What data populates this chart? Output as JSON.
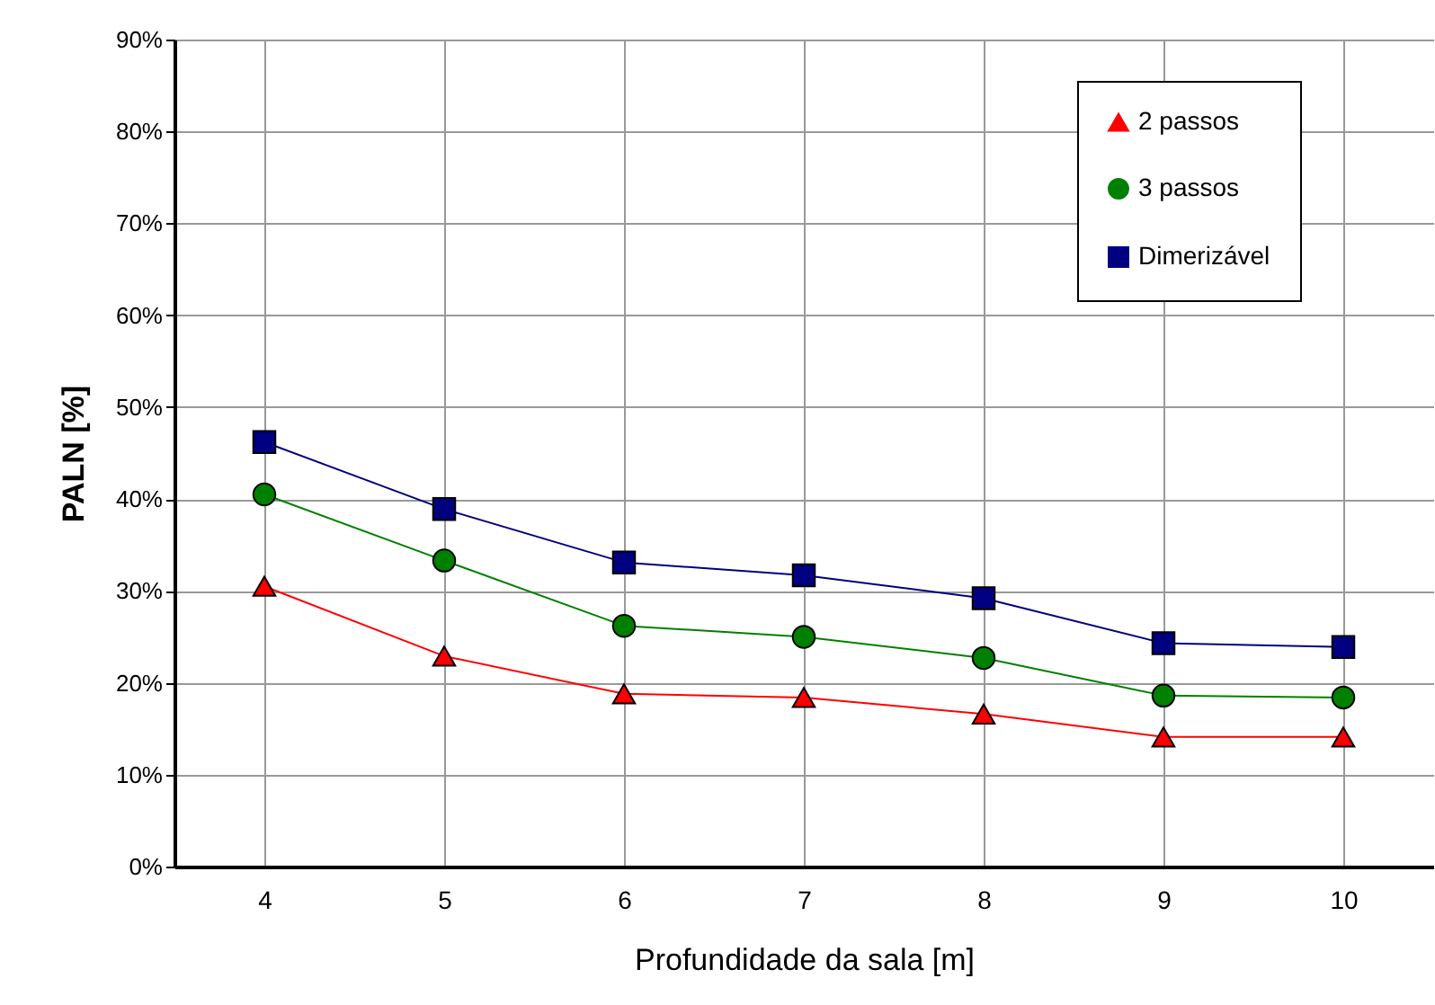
{
  "chart_data": {
    "type": "line",
    "xlabel": "Profundidade da sala [m]",
    "ylabel": "PALN [%]",
    "x": [
      4,
      5,
      6,
      7,
      8,
      9,
      10
    ],
    "xlim": [
      3.5,
      10.5
    ],
    "xticks": [
      4,
      5,
      6,
      7,
      8,
      9,
      10
    ],
    "ylim": [
      0,
      90
    ],
    "yticks": [
      {
        "value": 0,
        "label": "0%"
      },
      {
        "value": 10,
        "label": "10%"
      },
      {
        "value": 20,
        "label": "20%"
      },
      {
        "value": 30,
        "label": "30%"
      },
      {
        "value": 40,
        "label": "40%"
      },
      {
        "value": 50,
        "label": "50%"
      },
      {
        "value": 60,
        "label": "60%"
      },
      {
        "value": 70,
        "label": "70%"
      },
      {
        "value": 80,
        "label": "80%"
      },
      {
        "value": 90,
        "label": "90%"
      }
    ],
    "grid": true,
    "legend": "top right",
    "series": [
      {
        "name": "2 passos",
        "color": "#ff0000",
        "marker": "triangle",
        "values": [
          30.5,
          22.9,
          18.8,
          18.4,
          16.6,
          14.1,
          14.1
        ]
      },
      {
        "name": "3 passos",
        "color": "#008000",
        "marker": "circle",
        "values": [
          40.5,
          33.3,
          26.2,
          25.0,
          22.7,
          18.6,
          18.4
        ]
      },
      {
        "name": "Dimerizável",
        "color": "#000080",
        "marker": "square",
        "values": [
          46.2,
          38.9,
          33.1,
          31.7,
          29.2,
          24.3,
          23.9
        ]
      }
    ]
  }
}
